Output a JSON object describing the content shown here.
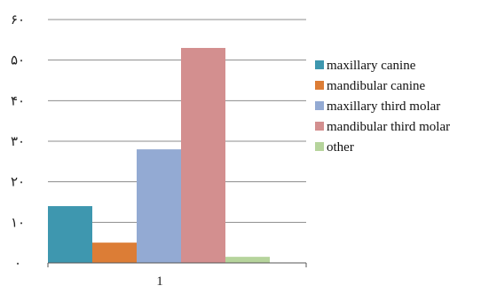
{
  "chart_data": {
    "type": "bar",
    "categories": [
      "1"
    ],
    "series": [
      {
        "name": "maxillary canine",
        "values": [
          14
        ],
        "color": "#3E97AF"
      },
      {
        "name": "mandibular canine",
        "values": [
          5
        ],
        "color": "#DC7D36"
      },
      {
        "name": "maxillary third molar",
        "values": [
          28
        ],
        "color": "#93AAD3"
      },
      {
        "name": "mandibular third molar",
        "values": [
          53
        ],
        "color": "#D38F8F"
      },
      {
        "name": "other",
        "values": [
          1.5
        ],
        "color": "#B6D49C"
      }
    ],
    "ylim": [
      0,
      60
    ],
    "y_ticks": [
      {
        "value": 0,
        "label": "۰"
      },
      {
        "value": 10,
        "label": "۱۰"
      },
      {
        "value": 20,
        "label": "۲۰"
      },
      {
        "value": 30,
        "label": "۳۰"
      },
      {
        "value": 40,
        "label": "۴۰"
      },
      {
        "value": 50,
        "label": "۵۰"
      },
      {
        "value": 60,
        "label": "۶۰"
      }
    ],
    "grid": true,
    "legend_position": "right"
  }
}
